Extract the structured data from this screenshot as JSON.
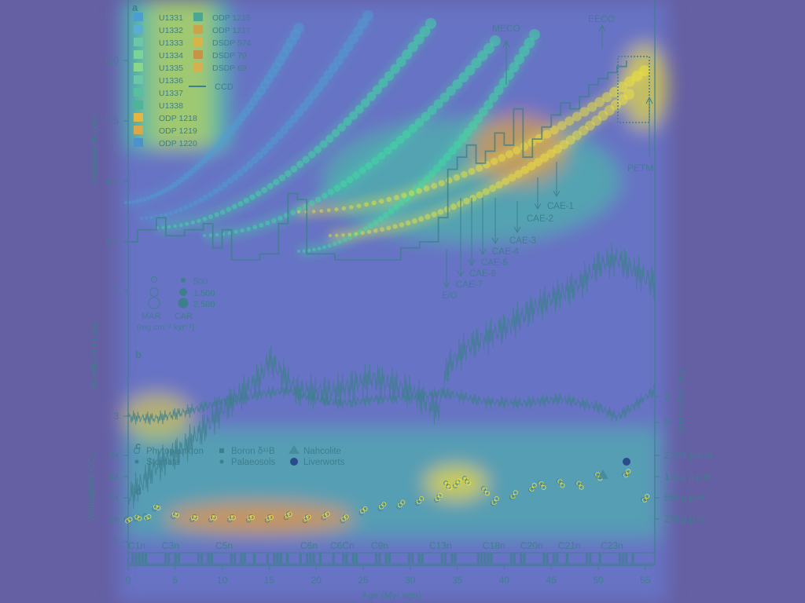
{
  "colors": {
    "background": "#655fa3",
    "ink": "#3e7f8e",
    "heat_low": "#6a87e6",
    "heat_mid": "#3fe0a0",
    "heat_high": "#f2e43a",
    "heat_peak": "#f39a3c"
  },
  "panels": {
    "a": "a",
    "b": "b",
    "c": "c",
    "d": "d"
  },
  "axes": {
    "x_label": "Age (Myr ago)",
    "x_ticks": [
      0,
      5,
      10,
      15,
      20,
      25,
      30,
      35,
      40,
      45,
      50,
      55
    ],
    "palaeodepth_label": "Palaeodepth (km)",
    "palaeodepth_ticks": [
      "3.0",
      "3.5",
      "4.0",
      "4.5"
    ],
    "d18o_label": "Benthic δ¹⁸O (‰)",
    "d18o_ticks": [
      "1",
      "3",
      "5"
    ],
    "d13c_label": "Benthic δ¹³C (‰)",
    "d13c_ticks": [
      "2",
      "0"
    ],
    "co2_label": "Atmospheric CO₂",
    "co2_ticks_left": [
      "8×",
      "4×",
      "2×",
      "1×"
    ],
    "co2_ticks_right": [
      "2,224 p.p.m.",
      "1,112 p.p.m.",
      "556 p.p.m.",
      "278 p.p.m."
    ]
  },
  "legend_sites": {
    "col1": [
      "U1331",
      "U1332",
      "U1333",
      "U1334",
      "U1335",
      "U1336",
      "U1337",
      "U1338",
      "ODP 1218",
      "ODP 1219",
      "ODP 1220"
    ],
    "col2": [
      "ODP 1215",
      "ODP 1217",
      "DSDP 574",
      "DSDP 70",
      "DSDP 69"
    ],
    "ccd": "CCD"
  },
  "legend_size": {
    "values": [
      "500",
      "1,500",
      "2,500"
    ],
    "mar": "MAR",
    "car": "CAR",
    "units": "(mg cm⁻² kyr⁻¹)"
  },
  "legend_co2": {
    "items": [
      "Phytoplankton",
      "Stomata",
      "Boron δ¹¹B",
      "Palaeosols",
      "Nahcolite",
      "Liverworts"
    ]
  },
  "annotations": {
    "top": [
      "MECO",
      "EECO",
      "PETM"
    ],
    "cae": [
      "E/O",
      "CAE-7",
      "CAE-6",
      "CAE-5",
      "CAE-4",
      "CAE-3",
      "CAE-2",
      "CAE-1"
    ]
  },
  "chrons": [
    "C1n",
    "C3n",
    "C5n",
    "C6n",
    "C6Cn",
    "C9n",
    "C13n",
    "C18n",
    "C20n",
    "C21n",
    "C23n"
  ],
  "chart_data": [
    {
      "type": "line",
      "panel": "a",
      "series": [
        {
          "name": "CCD",
          "x": [
            0,
            1,
            3,
            4,
            6,
            8,
            9,
            10,
            11,
            14,
            16,
            17,
            18,
            19,
            22,
            26,
            29,
            31,
            33,
            34,
            35,
            36,
            37,
            38,
            39,
            40,
            41,
            42,
            43,
            44,
            45,
            46,
            47,
            48,
            49,
            50,
            51,
            52,
            53
          ],
          "y": [
            4.5,
            4.4,
            4.3,
            4.45,
            4.4,
            4.35,
            4.55,
            4.4,
            4.65,
            4.6,
            4.35,
            4.1,
            4.15,
            4.6,
            4.65,
            4.65,
            4.55,
            4.5,
            4.3,
            3.9,
            3.8,
            3.7,
            3.85,
            3.75,
            3.6,
            3.7,
            3.4,
            3.8,
            3.65,
            3.55,
            3.45,
            3.35,
            3.4,
            3.3,
            3.2,
            3.15,
            3.1,
            3.05,
            3.0
          ]
        }
      ],
      "xlim": [
        0,
        56
      ],
      "ylim": [
        4.75,
        2.85
      ]
    },
    {
      "type": "line",
      "panel": "b",
      "series": [
        {
          "name": "δ¹⁸O",
          "x": [
            0,
            3,
            6,
            10,
            14,
            15,
            18,
            22,
            26,
            30,
            33,
            34,
            36,
            40,
            44,
            48,
            50,
            52,
            54,
            56
          ],
          "y": [
            4.3,
            3.8,
            3.5,
            2.9,
            2.4,
            2.1,
            2.6,
            2.6,
            2.4,
            2.6,
            2.9,
            2.2,
            1.9,
            1.6,
            1.2,
            0.9,
            0.6,
            0.5,
            0.7,
            0.9
          ]
        },
        {
          "name": "δ¹³C",
          "x": [
            0,
            3,
            6,
            10,
            14,
            17,
            20,
            23,
            26,
            30,
            34,
            38,
            42,
            46,
            50,
            52,
            54,
            56
          ],
          "y": [
            0.4,
            0.3,
            0.8,
            1.6,
            2.2,
            2.5,
            1.8,
            1.5,
            1.8,
            2.0,
            2.2,
            1.6,
            1.5,
            1.8,
            1.2,
            0.4,
            1.4,
            2.5
          ]
        }
      ],
      "xlim": [
        0,
        56
      ]
    },
    {
      "type": "scatter",
      "panel": "d",
      "series": [
        {
          "name": "CO₂",
          "x": [
            0,
            1,
            2,
            3,
            5,
            7,
            9,
            11,
            13,
            15,
            17,
            19,
            21,
            23,
            25,
            27,
            29,
            31,
            33,
            34,
            35,
            36,
            38,
            39,
            41,
            43,
            44,
            46,
            48,
            50,
            53,
            55
          ],
          "y": [
            1.0,
            1.0,
            1.1,
            1.4,
            1.1,
            1.0,
            1.0,
            1.0,
            1.0,
            1.0,
            1.1,
            1.0,
            1.1,
            1.0,
            1.3,
            1.5,
            1.6,
            1.8,
            2.0,
            3.0,
            3.2,
            3.5,
            2.5,
            1.8,
            2.2,
            2.8,
            3.0,
            3.2,
            3.0,
            4.0,
            4.5,
            2.0
          ]
        }
      ],
      "xlim": [
        0,
        56
      ]
    }
  ]
}
